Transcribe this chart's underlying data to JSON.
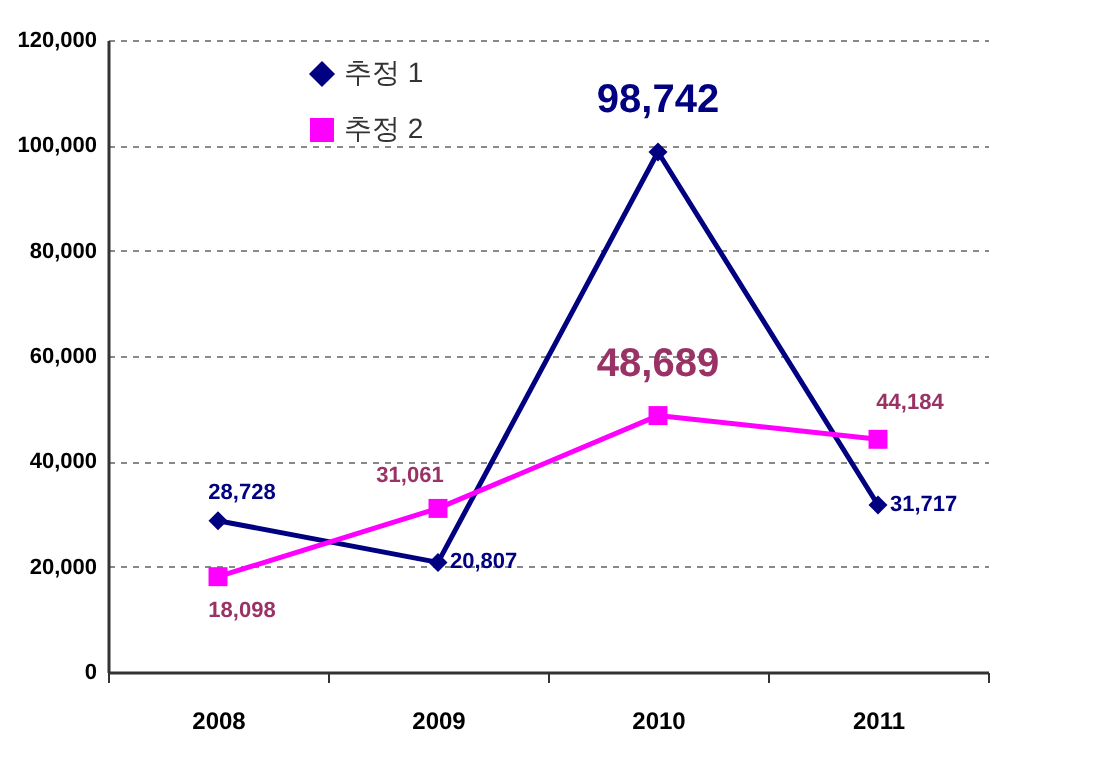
{
  "chart_data": {
    "type": "line",
    "categories": [
      "2008",
      "2009",
      "2010",
      "2011"
    ],
    "series": [
      {
        "name": "추정 1",
        "color": "#000080",
        "marker": "diamond",
        "values": [
          28728,
          20807,
          98742,
          31717
        ],
        "value_labels": [
          "28,728",
          "20,807",
          "98,742",
          "31,717"
        ]
      },
      {
        "name": "추정 2",
        "color": "#ff00ff",
        "marker": "square",
        "values": [
          18098,
          31061,
          48689,
          44184
        ],
        "value_labels": [
          "18,098",
          "31,061",
          "48,689",
          "44,184"
        ]
      }
    ],
    "ylim": [
      0,
      120000
    ],
    "yticks": [
      0,
      {
        "value": 20000,
        "label": "20,000"
      },
      {
        "value": 40000,
        "label": "40,000"
      },
      {
        "value": 60000,
        "label": "60,000"
      },
      {
        "value": 80000,
        "label": "80,000"
      },
      {
        "value": 100000,
        "label": "100,000"
      },
      {
        "value": 120000,
        "label": "120,000"
      }
    ],
    "grid": "y",
    "legend": "top left"
  }
}
